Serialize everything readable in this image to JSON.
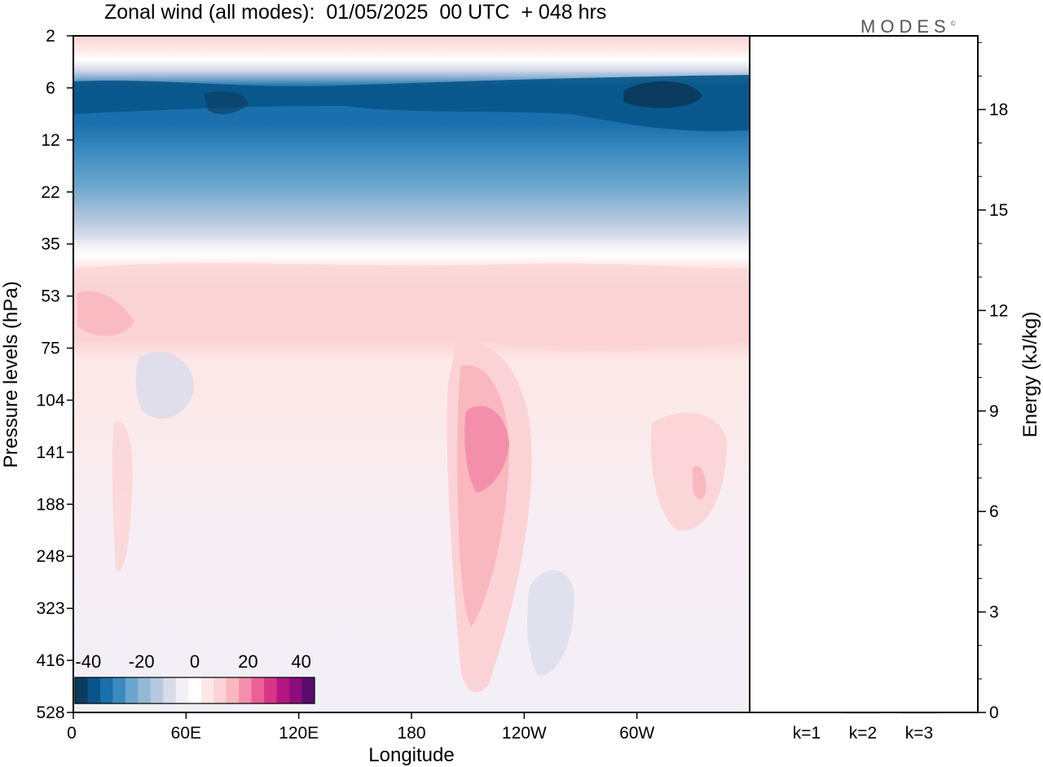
{
  "header": {
    "title": "Zonal wind (all modes):  01/05/2025  00 UTC  + 048 hrs",
    "brand": "MODES"
  },
  "chart_data": [
    {
      "type": "heatmap",
      "title": "Zonal wind (all modes):  01/05/2025  00 UTC  + 048 hrs",
      "xlabel": "Longitude",
      "ylabel": "Pressure levels (hPa)",
      "x_ticks": [
        "0",
        "60E",
        "120E",
        "180",
        "120W",
        "60W"
      ],
      "y_ticks": [
        "2",
        "6",
        "12",
        "22",
        "35",
        "53",
        "75",
        "104",
        "141",
        "188",
        "248",
        "323",
        "416",
        "528"
      ],
      "y_scale": "log (model levels)",
      "colorbar": {
        "labels": [
          "-40",
          "-20",
          "0",
          "20",
          "40"
        ],
        "levels": [
          -45,
          -40,
          -35,
          -30,
          -25,
          -20,
          -15,
          -10,
          -5,
          0,
          5,
          10,
          15,
          20,
          25,
          30,
          35,
          40,
          45
        ],
        "colors": [
          "#0b3b5e",
          "#08558a",
          "#1a6fac",
          "#3a8bbf",
          "#6aa6cc",
          "#94b8d6",
          "#b7c9e0",
          "#d8dbea",
          "#f2eff7",
          "#ffffff",
          "#fde8e8",
          "#fbd3d6",
          "#f9b7c0",
          "#f48fab",
          "#ec5f97",
          "#d83488",
          "#b41682",
          "#8b0d7b",
          "#5b0b6d"
        ],
        "placement": "bottom-left"
      },
      "field_bands": [
        {
          "from": "2",
          "to": "6",
          "value_range": [
            0,
            15
          ],
          "note": "weak easterly to westerly transition near top"
        },
        {
          "from": "6",
          "to": "22",
          "value_range": [
            -40,
            -20
          ],
          "note": "strong easterlies, core near 6-12 hPa"
        },
        {
          "from": "22",
          "to": "35",
          "value_range": [
            -15,
            0
          ]
        },
        {
          "from": "35",
          "to": "75",
          "value_range": [
            5,
            15
          ]
        },
        {
          "from": "75",
          "to": "528",
          "value_range": [
            -5,
            20
          ],
          "note": "westerly max ~20 near 150W at 104-141 hPa"
        }
      ]
    },
    {
      "type": "bar",
      "categories": [
        "k=1",
        "k=2",
        "k=3"
      ],
      "values": [
        0.02,
        0.01,
        0.01
      ],
      "ylabel": "Energy (kJ/kg)",
      "y_ticks": [
        "0",
        "3",
        "6",
        "9",
        "12",
        "15",
        "18"
      ],
      "ylim": [
        0,
        20.2
      ]
    }
  ]
}
